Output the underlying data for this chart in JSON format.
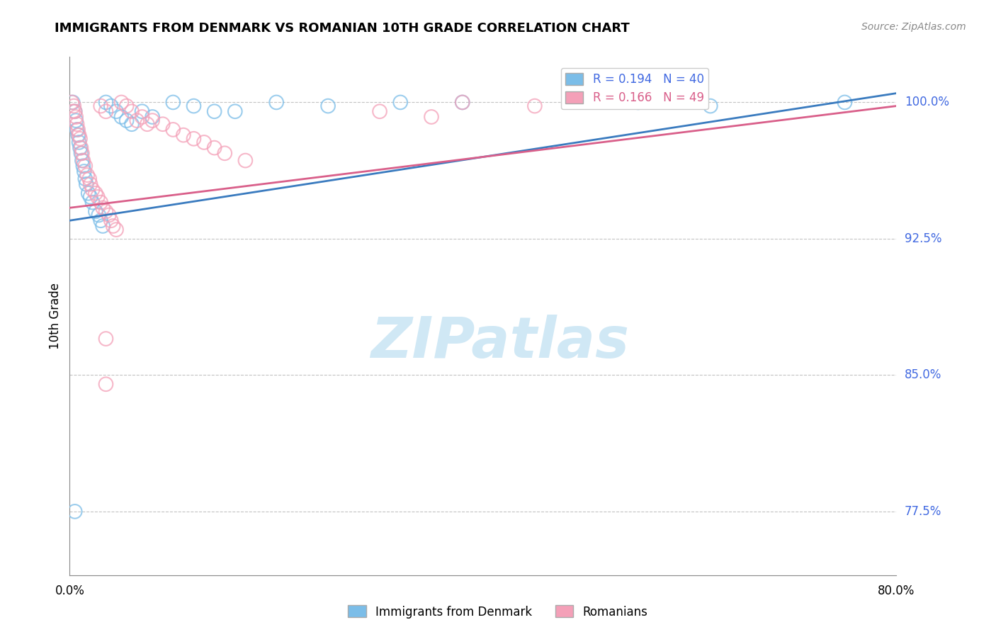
{
  "title": "IMMIGRANTS FROM DENMARK VS ROMANIAN 10TH GRADE CORRELATION CHART",
  "source": "Source: ZipAtlas.com",
  "ylabel": "10th Grade",
  "ytick_labels": [
    "77.5%",
    "85.0%",
    "92.5%",
    "100.0%"
  ],
  "ytick_values": [
    77.5,
    85.0,
    92.5,
    100.0
  ],
  "xlim": [
    0.0,
    80.0
  ],
  "ylim": [
    74.0,
    102.5
  ],
  "legend_blue_r": "0.194",
  "legend_blue_n": "40",
  "legend_pink_r": "0.166",
  "legend_pink_n": "49",
  "blue_color": "#7bbde8",
  "pink_color": "#f4a0b8",
  "trendline_blue": "#3a7bbf",
  "trendline_pink": "#d95f8a",
  "blue_scatter": [
    [
      0.3,
      100.0
    ],
    [
      0.5,
      99.5
    ],
    [
      0.6,
      99.0
    ],
    [
      0.7,
      98.5
    ],
    [
      0.8,
      98.2
    ],
    [
      0.9,
      97.8
    ],
    [
      1.0,
      97.5
    ],
    [
      1.1,
      97.2
    ],
    [
      1.2,
      96.8
    ],
    [
      1.3,
      96.5
    ],
    [
      1.4,
      96.2
    ],
    [
      1.5,
      95.8
    ],
    [
      1.6,
      95.5
    ],
    [
      1.8,
      95.0
    ],
    [
      2.0,
      94.8
    ],
    [
      2.2,
      94.5
    ],
    [
      2.5,
      94.0
    ],
    [
      2.8,
      93.8
    ],
    [
      3.0,
      93.5
    ],
    [
      3.2,
      93.2
    ],
    [
      3.5,
      100.0
    ],
    [
      4.0,
      99.8
    ],
    [
      4.5,
      99.5
    ],
    [
      5.0,
      99.2
    ],
    [
      5.5,
      99.0
    ],
    [
      6.0,
      98.8
    ],
    [
      7.0,
      99.5
    ],
    [
      8.0,
      99.2
    ],
    [
      10.0,
      100.0
    ],
    [
      12.0,
      99.8
    ],
    [
      14.0,
      99.5
    ],
    [
      16.0,
      99.5
    ],
    [
      20.0,
      100.0
    ],
    [
      25.0,
      99.8
    ],
    [
      32.0,
      100.0
    ],
    [
      38.0,
      100.0
    ],
    [
      55.0,
      100.0
    ],
    [
      62.0,
      99.8
    ],
    [
      75.0,
      100.0
    ],
    [
      0.5,
      77.5
    ]
  ],
  "pink_scatter": [
    [
      0.2,
      100.0
    ],
    [
      0.4,
      99.8
    ],
    [
      0.5,
      99.5
    ],
    [
      0.6,
      99.2
    ],
    [
      0.7,
      98.8
    ],
    [
      0.8,
      98.5
    ],
    [
      0.9,
      98.2
    ],
    [
      1.0,
      98.0
    ],
    [
      1.1,
      97.5
    ],
    [
      1.2,
      97.2
    ],
    [
      1.3,
      96.8
    ],
    [
      1.5,
      96.5
    ],
    [
      1.7,
      96.0
    ],
    [
      1.9,
      95.8
    ],
    [
      2.0,
      95.5
    ],
    [
      2.2,
      95.2
    ],
    [
      2.5,
      95.0
    ],
    [
      2.7,
      94.8
    ],
    [
      3.0,
      94.5
    ],
    [
      3.2,
      94.2
    ],
    [
      3.5,
      94.0
    ],
    [
      3.8,
      93.8
    ],
    [
      4.0,
      93.5
    ],
    [
      4.2,
      93.2
    ],
    [
      4.5,
      93.0
    ],
    [
      5.0,
      100.0
    ],
    [
      5.5,
      99.8
    ],
    [
      6.0,
      99.5
    ],
    [
      7.0,
      99.2
    ],
    [
      8.0,
      99.0
    ],
    [
      9.0,
      98.8
    ],
    [
      10.0,
      98.5
    ],
    [
      11.0,
      98.2
    ],
    [
      12.0,
      98.0
    ],
    [
      13.0,
      97.8
    ],
    [
      14.0,
      97.5
    ],
    [
      3.0,
      99.8
    ],
    [
      3.5,
      99.5
    ],
    [
      6.5,
      99.0
    ],
    [
      7.5,
      98.8
    ],
    [
      15.0,
      97.2
    ],
    [
      17.0,
      96.8
    ],
    [
      30.0,
      99.5
    ],
    [
      35.0,
      99.2
    ],
    [
      3.5,
      87.0
    ],
    [
      3.5,
      84.5
    ],
    [
      38.0,
      100.0
    ],
    [
      45.0,
      99.8
    ],
    [
      0.3,
      99.5
    ]
  ],
  "trendline_blue_pts": [
    [
      0.0,
      93.5
    ],
    [
      80.0,
      100.5
    ]
  ],
  "trendline_pink_pts": [
    [
      0.0,
      94.2
    ],
    [
      80.0,
      99.8
    ]
  ],
  "watermark": "ZIPatlas",
  "watermark_color": "#d0e8f5"
}
